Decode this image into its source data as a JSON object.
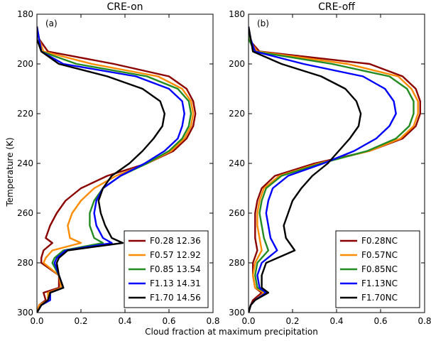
{
  "figure": {
    "ylabel": "Temperature (K)",
    "xlabel": "Cloud fraction at maximum precipitation"
  },
  "chart_data": [
    {
      "type": "line",
      "title": "CRE-on",
      "panel_label": "(a)",
      "xlim": [
        0.0,
        0.8
      ],
      "ylim": [
        300,
        180
      ],
      "xticks": [
        0.0,
        0.2,
        0.4,
        0.6,
        0.8
      ],
      "yticks": [
        180,
        200,
        220,
        240,
        260,
        280,
        300
      ],
      "y_inverted": true,
      "legend_position": "lower-right",
      "series": [
        {
          "name": "F0.28 12.36",
          "color": "#8b0000",
          "y": [
            185,
            190,
            195,
            200,
            205,
            210,
            215,
            220,
            225,
            230,
            235,
            240,
            245,
            250,
            255,
            260,
            265,
            270,
            272,
            275,
            278,
            280,
            285,
            290,
            292,
            295,
            297,
            300
          ],
          "x": [
            0.0,
            0.01,
            0.05,
            0.35,
            0.6,
            0.68,
            0.71,
            0.72,
            0.71,
            0.68,
            0.62,
            0.5,
            0.32,
            0.2,
            0.13,
            0.09,
            0.06,
            0.04,
            0.07,
            0.03,
            0.02,
            0.02,
            0.1,
            0.1,
            0.03,
            0.04,
            0.01,
            0.0
          ]
        },
        {
          "name": "F0.57 12.92",
          "color": "#ff8c00",
          "y": [
            185,
            190,
            195,
            200,
            205,
            210,
            215,
            220,
            225,
            230,
            235,
            240,
            245,
            250,
            255,
            260,
            265,
            270,
            272,
            275,
            278,
            280,
            285,
            290,
            292,
            295,
            297,
            300
          ],
          "x": [
            0.0,
            0.01,
            0.03,
            0.25,
            0.55,
            0.66,
            0.7,
            0.71,
            0.7,
            0.67,
            0.61,
            0.5,
            0.36,
            0.26,
            0.2,
            0.16,
            0.14,
            0.15,
            0.2,
            0.07,
            0.04,
            0.03,
            0.1,
            0.11,
            0.05,
            0.05,
            0.01,
            0.0
          ]
        },
        {
          "name": "F0.85 13.54",
          "color": "#228b22",
          "y": [
            185,
            190,
            195,
            200,
            205,
            210,
            215,
            220,
            225,
            230,
            235,
            240,
            245,
            250,
            255,
            260,
            265,
            270,
            272,
            275,
            278,
            280,
            285,
            290,
            292,
            295,
            297,
            300
          ],
          "x": [
            0.0,
            0.01,
            0.02,
            0.18,
            0.5,
            0.64,
            0.69,
            0.7,
            0.69,
            0.66,
            0.6,
            0.5,
            0.38,
            0.3,
            0.26,
            0.24,
            0.24,
            0.26,
            0.3,
            0.12,
            0.08,
            0.07,
            0.1,
            0.12,
            0.06,
            0.06,
            0.02,
            0.0
          ]
        },
        {
          "name": "F1.13 14.31",
          "color": "#0000ff",
          "y": [
            185,
            190,
            195,
            200,
            205,
            210,
            215,
            220,
            225,
            230,
            235,
            240,
            245,
            250,
            255,
            260,
            265,
            270,
            272,
            275,
            278,
            280,
            285,
            290,
            292,
            295,
            297,
            300
          ],
          "x": [
            0.0,
            0.01,
            0.02,
            0.12,
            0.45,
            0.6,
            0.66,
            0.67,
            0.66,
            0.64,
            0.58,
            0.49,
            0.38,
            0.3,
            0.27,
            0.26,
            0.27,
            0.3,
            0.34,
            0.13,
            0.09,
            0.08,
            0.1,
            0.12,
            0.06,
            0.06,
            0.02,
            0.0
          ]
        },
        {
          "name": "F1.70 14.56",
          "color": "#000000",
          "y": [
            185,
            190,
            195,
            200,
            205,
            210,
            215,
            220,
            225,
            230,
            235,
            240,
            245,
            250,
            255,
            260,
            265,
            270,
            272,
            275,
            278,
            280,
            285,
            290,
            292,
            295,
            297,
            300
          ],
          "x": [
            0.0,
            0.0,
            0.02,
            0.1,
            0.32,
            0.48,
            0.56,
            0.58,
            0.57,
            0.53,
            0.48,
            0.42,
            0.34,
            0.3,
            0.28,
            0.29,
            0.31,
            0.34,
            0.39,
            0.14,
            0.1,
            0.09,
            0.1,
            0.12,
            0.06,
            0.05,
            0.02,
            0.0
          ]
        }
      ]
    },
    {
      "type": "line",
      "title": "CRE-off",
      "panel_label": "(b)",
      "xlim": [
        0.0,
        0.8
      ],
      "ylim": [
        300,
        180
      ],
      "xticks": [
        0.0,
        0.2,
        0.4,
        0.6,
        0.8
      ],
      "yticks": [
        180,
        200,
        220,
        240,
        260,
        280,
        300
      ],
      "y_inverted": true,
      "legend_position": "lower-right",
      "series": [
        {
          "name": "F0.28NC",
          "color": "#8b0000",
          "y": [
            185,
            190,
            195,
            200,
            205,
            210,
            215,
            220,
            225,
            230,
            235,
            240,
            245,
            250,
            255,
            260,
            265,
            270,
            275,
            280,
            285,
            290,
            292,
            295,
            297,
            300
          ],
          "x": [
            0.0,
            0.0,
            0.05,
            0.55,
            0.7,
            0.76,
            0.78,
            0.78,
            0.76,
            0.7,
            0.55,
            0.3,
            0.12,
            0.06,
            0.04,
            0.03,
            0.03,
            0.03,
            0.04,
            0.02,
            0.02,
            0.03,
            0.06,
            0.02,
            0.01,
            0.0
          ]
        },
        {
          "name": "F0.57NC",
          "color": "#ff8c00",
          "y": [
            185,
            190,
            195,
            200,
            205,
            210,
            215,
            220,
            225,
            230,
            235,
            240,
            245,
            250,
            255,
            260,
            265,
            270,
            275,
            280,
            285,
            290,
            292,
            295,
            297,
            300
          ],
          "x": [
            0.0,
            0.0,
            0.04,
            0.45,
            0.68,
            0.74,
            0.77,
            0.77,
            0.75,
            0.69,
            0.55,
            0.32,
            0.14,
            0.07,
            0.05,
            0.04,
            0.04,
            0.05,
            0.06,
            0.03,
            0.02,
            0.03,
            0.07,
            0.03,
            0.01,
            0.0
          ]
        },
        {
          "name": "F0.85NC",
          "color": "#228b22",
          "y": [
            185,
            190,
            195,
            200,
            205,
            210,
            215,
            220,
            225,
            230,
            235,
            240,
            245,
            250,
            255,
            260,
            265,
            270,
            275,
            280,
            285,
            290,
            292,
            295,
            297,
            300
          ],
          "x": [
            0.0,
            0.0,
            0.03,
            0.38,
            0.64,
            0.72,
            0.75,
            0.75,
            0.73,
            0.67,
            0.54,
            0.33,
            0.15,
            0.08,
            0.06,
            0.05,
            0.06,
            0.07,
            0.09,
            0.04,
            0.03,
            0.04,
            0.08,
            0.03,
            0.01,
            0.0
          ]
        },
        {
          "name": "F1.13NC",
          "color": "#0000ff",
          "y": [
            185,
            190,
            195,
            200,
            205,
            210,
            215,
            220,
            225,
            230,
            235,
            240,
            245,
            250,
            255,
            260,
            265,
            270,
            275,
            280,
            285,
            290,
            292,
            295,
            297,
            300
          ],
          "x": [
            0.0,
            0.01,
            0.03,
            0.25,
            0.52,
            0.62,
            0.66,
            0.67,
            0.64,
            0.58,
            0.48,
            0.34,
            0.18,
            0.11,
            0.09,
            0.08,
            0.09,
            0.1,
            0.13,
            0.06,
            0.04,
            0.05,
            0.08,
            0.03,
            0.01,
            0.0
          ]
        },
        {
          "name": "F1.70NC",
          "color": "#000000",
          "y": [
            185,
            190,
            195,
            200,
            205,
            210,
            215,
            220,
            225,
            230,
            235,
            240,
            245,
            250,
            255,
            260,
            265,
            270,
            275,
            280,
            285,
            290,
            292,
            295,
            297,
            300
          ],
          "x": [
            0.0,
            0.01,
            0.02,
            0.15,
            0.33,
            0.44,
            0.49,
            0.51,
            0.5,
            0.46,
            0.41,
            0.36,
            0.29,
            0.24,
            0.2,
            0.18,
            0.16,
            0.17,
            0.21,
            0.08,
            0.06,
            0.06,
            0.09,
            0.03,
            0.01,
            0.0
          ]
        }
      ]
    }
  ]
}
